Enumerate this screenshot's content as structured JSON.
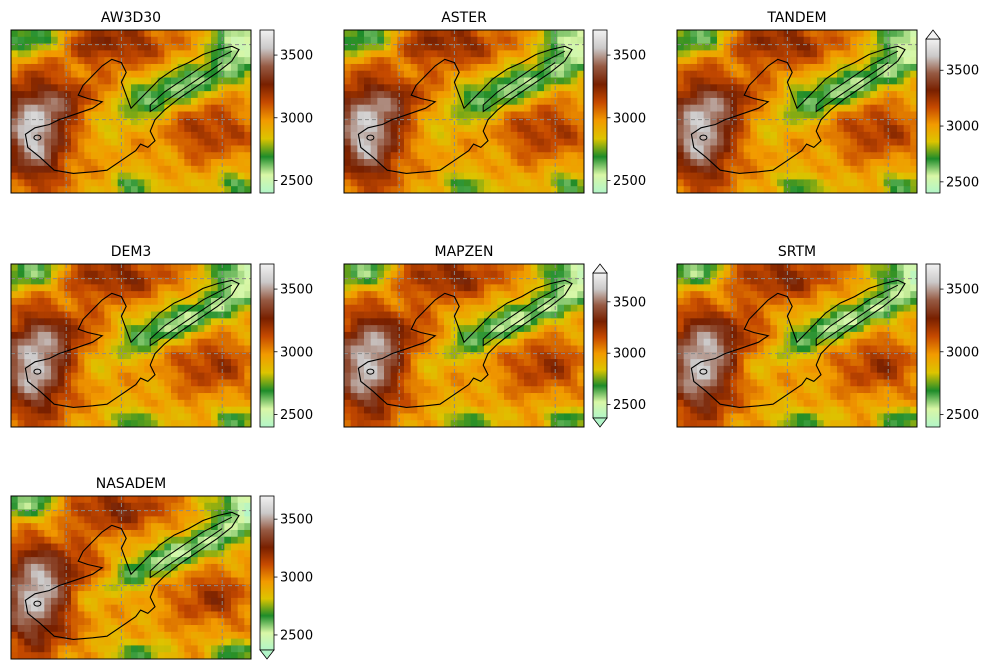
{
  "chart_data": {
    "type": "heatmap",
    "colormap": "terrain",
    "colormap_stops": [
      "#b2f5c8",
      "#d9f7a6",
      "#1e8c2a",
      "#ddc400",
      "#f29a00",
      "#c64a00",
      "#782000",
      "#965a43",
      "#cbc9c9",
      "#f2f2f2"
    ],
    "grid": true,
    "grid_color": "#8a8a8a",
    "outline_color": "#000000",
    "panels": [
      {
        "title": "AW3D30",
        "colorbar": {
          "ticks": [
            2500,
            3000,
            3500
          ],
          "range": [
            2400,
            3700
          ],
          "extend": "neither"
        }
      },
      {
        "title": "ASTER",
        "colorbar": {
          "ticks": [
            2500,
            3000,
            3500
          ],
          "range": [
            2400,
            3700
          ],
          "extend": "neither"
        }
      },
      {
        "title": "TANDEM",
        "colorbar": {
          "ticks": [
            2500,
            3000,
            3500
          ],
          "range": [
            2400,
            3780
          ],
          "extend": "max"
        }
      },
      {
        "title": "DEM3",
        "colorbar": {
          "ticks": [
            2500,
            3000,
            3500
          ],
          "range": [
            2400,
            3700
          ],
          "extend": "neither"
        }
      },
      {
        "title": "MAPZEN",
        "colorbar": {
          "ticks": [
            2500,
            3000,
            3500
          ],
          "range": [
            2370,
            3780
          ],
          "extend": "both"
        }
      },
      {
        "title": "SRTM",
        "colorbar": {
          "ticks": [
            2500,
            3000,
            3500
          ],
          "range": [
            2400,
            3700
          ],
          "extend": "neither"
        }
      },
      {
        "title": "NASADEM",
        "colorbar": {
          "ticks": [
            2500,
            3000,
            3500
          ],
          "range": [
            2370,
            3700
          ],
          "extend": "min"
        }
      }
    ]
  }
}
